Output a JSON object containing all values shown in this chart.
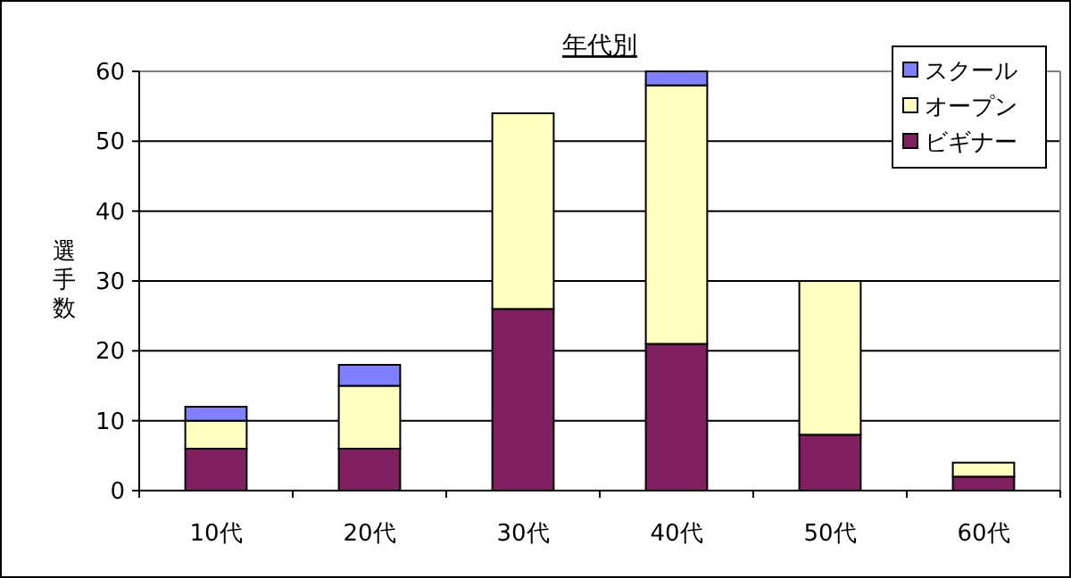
{
  "chart_data": {
    "type": "bar",
    "title": "年代別",
    "ylabel": "選手数",
    "categories": [
      "10代",
      "20代",
      "30代",
      "40代",
      "50代",
      "60代"
    ],
    "stacked": true,
    "series": [
      {
        "name": "ビギナー",
        "color": "#802060",
        "values": [
          6,
          6,
          26,
          21,
          8,
          2
        ]
      },
      {
        "name": "オープン",
        "color": "#ffffc0",
        "values": [
          4,
          9,
          28,
          37,
          22,
          2
        ]
      },
      {
        "name": "スクール",
        "color": "#8080ff",
        "values": [
          2,
          3,
          0,
          2,
          0,
          0
        ]
      }
    ],
    "ylim": [
      0,
      60
    ],
    "yticks": [
      0,
      10,
      20,
      30,
      40,
      50,
      60
    ],
    "grid": "y",
    "legend": "top right"
  }
}
